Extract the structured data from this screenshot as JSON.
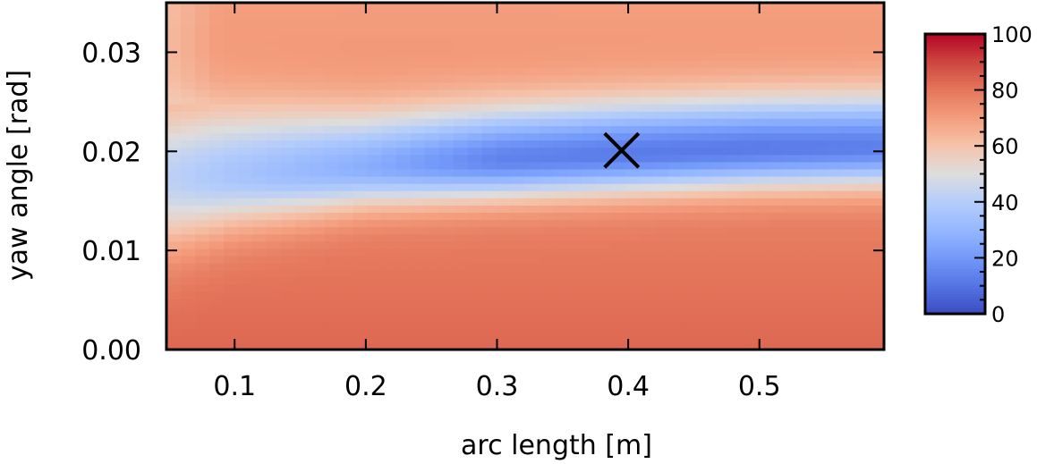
{
  "chart_data": {
    "type": "heatmap",
    "title": "",
    "xlabel": "arc length [m]",
    "ylabel": "yaw angle [rad]",
    "xlim": [
      0.048,
      0.595
    ],
    "ylim": [
      0.0,
      0.035
    ],
    "x_ticks": [
      0.1,
      0.2,
      0.3,
      0.4,
      0.5
    ],
    "x_tick_labels": [
      "0.1",
      "0.2",
      "0.3",
      "0.4",
      "0.5"
    ],
    "y_ticks": [
      0.0,
      0.01,
      0.02,
      0.03
    ],
    "y_tick_labels": [
      "0.00",
      "0.01",
      "0.02",
      "0.03"
    ],
    "colorbar": {
      "colormap": "coolwarm",
      "range": [
        0,
        100
      ],
      "ticks": [
        0,
        20,
        40,
        60,
        80,
        100
      ],
      "tick_labels": [
        "0",
        "20",
        "40",
        "60",
        "80",
        "100"
      ]
    },
    "valley": {
      "x": [
        0.05,
        0.1,
        0.2,
        0.3,
        0.4,
        0.5,
        0.595
      ],
      "center_y": [
        0.0175,
        0.0178,
        0.0185,
        0.0192,
        0.0198,
        0.0203,
        0.0205
      ],
      "min_value": [
        42,
        36,
        27,
        14,
        12,
        12,
        13
      ],
      "half_width_low": [
        0.0085,
        0.0065,
        0.005,
        0.0048,
        0.0048,
        0.0048,
        0.0048
      ],
      "half_width_high": [
        0.009,
        0.0085,
        0.007,
        0.0067,
        0.0066,
        0.0065,
        0.0065
      ]
    },
    "background_value_top": 70,
    "background_value_bottom": 83,
    "marker": {
      "label": "minimum",
      "symbol": "x",
      "x": 0.395,
      "y": 0.0201,
      "color": "#000000"
    },
    "grid": false,
    "legend": "none"
  }
}
